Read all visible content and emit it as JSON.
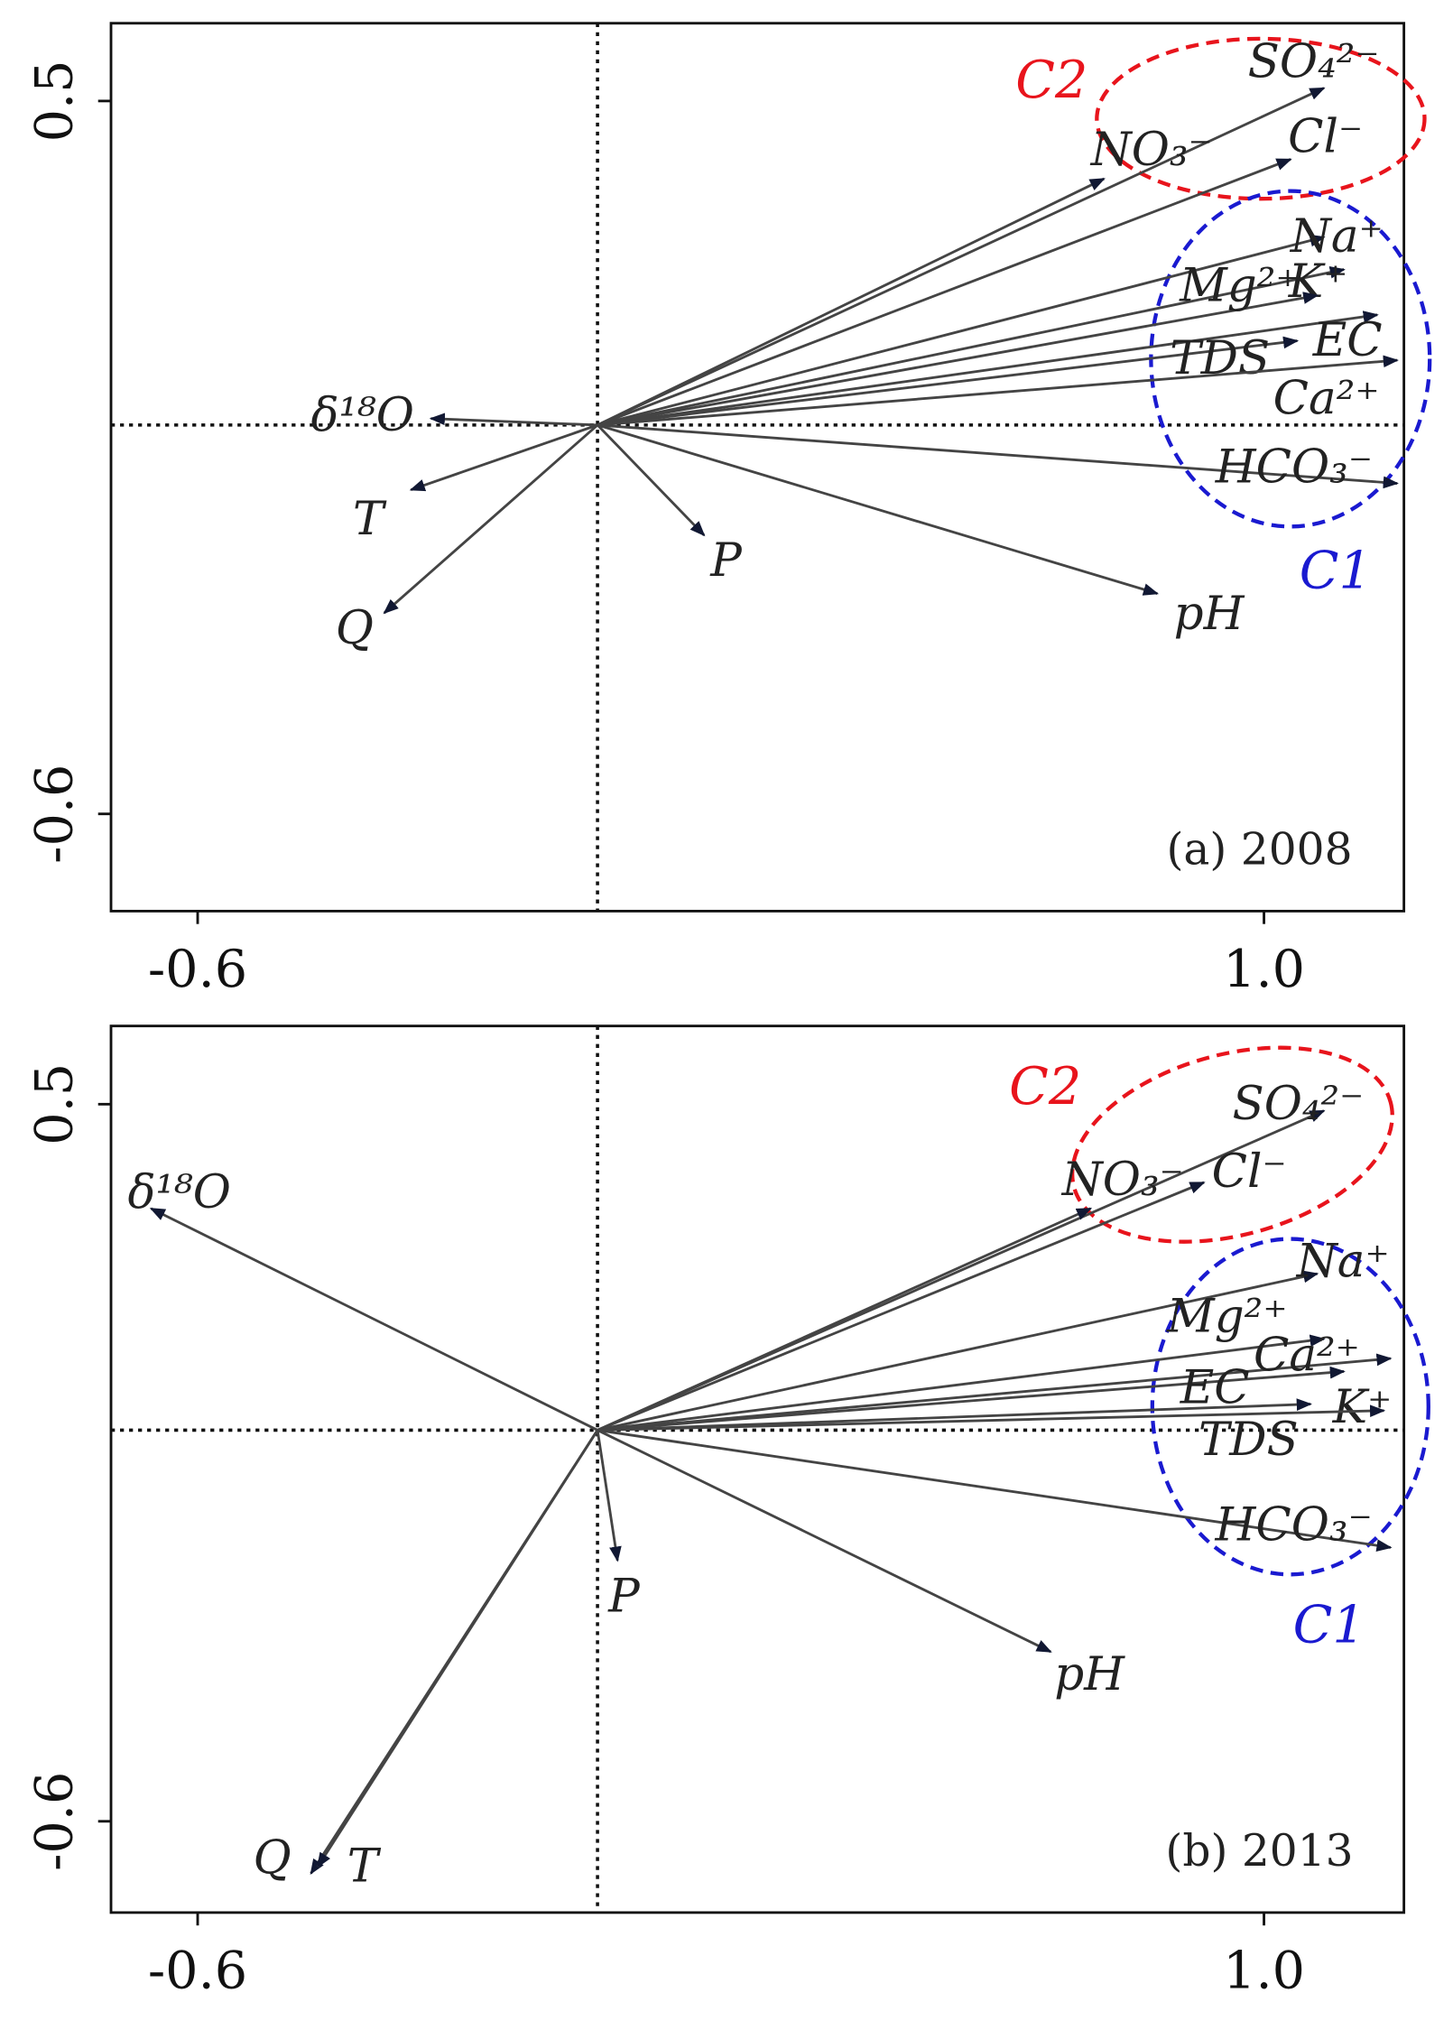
{
  "chart_data": [
    {
      "type": "biplot",
      "title": "(a) 2008",
      "xlim": [
        -0.73,
        1.21
      ],
      "ylim": [
        -0.75,
        0.62
      ],
      "xticks": [
        -0.6,
        {
          "value": 1.0,
          "label": "1.0"
        }
      ],
      "yticks": [
        0.5,
        -0.6
      ],
      "vectors": [
        {
          "name": "SO₄²⁻",
          "x": 1.09,
          "y": 0.52
        },
        {
          "name": "NO₃⁻",
          "x": 0.76,
          "y": 0.38
        },
        {
          "name": "Cl⁻",
          "x": 1.04,
          "y": 0.41
        },
        {
          "name": "Na⁺",
          "x": 1.09,
          "y": 0.29
        },
        {
          "name": "K⁺",
          "x": 1.12,
          "y": 0.24
        },
        {
          "name": "Mg²⁺",
          "x": 1.08,
          "y": 0.2
        },
        {
          "name": "EC",
          "x": 1.17,
          "y": 0.17
        },
        {
          "name": "TDS",
          "x": 1.05,
          "y": 0.13
        },
        {
          "name": "Ca²⁺",
          "x": 1.2,
          "y": 0.1
        },
        {
          "name": "HCO₃⁻",
          "x": 1.2,
          "y": -0.09
        },
        {
          "name": "pH",
          "x": 0.84,
          "y": -0.26
        },
        {
          "name": "P",
          "x": 0.16,
          "y": -0.17
        },
        {
          "name": "δ¹⁸O",
          "x": -0.25,
          "y": 0.01
        },
        {
          "name": "T",
          "x": -0.28,
          "y": -0.1
        },
        {
          "name": "Q",
          "x": -0.32,
          "y": -0.29
        }
      ],
      "groups": [
        {
          "name": "C2",
          "color": "#e8141c"
        },
        {
          "name": "C1",
          "color": "#1a1ad0"
        }
      ]
    },
    {
      "type": "biplot",
      "title": "(b) 2013",
      "xlim": [
        -0.73,
        1.21
      ],
      "ylim": [
        -0.74,
        0.62
      ],
      "xticks": [
        -0.6,
        {
          "value": 1.0,
          "label": "1.0"
        }
      ],
      "yticks": [
        0.5,
        -0.6
      ],
      "vectors": [
        {
          "name": "SO₄²⁻",
          "x": 1.09,
          "y": 0.49
        },
        {
          "name": "NO₃⁻",
          "x": 0.74,
          "y": 0.34
        },
        {
          "name": "Cl⁻",
          "x": 0.91,
          "y": 0.38
        },
        {
          "name": "Na⁺",
          "x": 1.08,
          "y": 0.24
        },
        {
          "name": "Mg²⁺",
          "x": 1.09,
          "y": 0.14
        },
        {
          "name": "Ca²⁺",
          "x": 1.19,
          "y": 0.11
        },
        {
          "name": "EC",
          "x": 1.12,
          "y": 0.09
        },
        {
          "name": "K⁺",
          "x": 1.07,
          "y": 0.04
        },
        {
          "name": "TDS",
          "x": 1.18,
          "y": 0.03
        },
        {
          "name": "HCO₃⁻",
          "x": 1.19,
          "y": -0.18
        },
        {
          "name": "pH",
          "x": 0.68,
          "y": -0.34
        },
        {
          "name": "P",
          "x": 0.03,
          "y": -0.2
        },
        {
          "name": "δ¹⁸O",
          "x": -0.67,
          "y": 0.34
        },
        {
          "name": "Q",
          "x": -0.43,
          "y": -0.68
        },
        {
          "name": "T",
          "x": -0.42,
          "y": -0.67
        }
      ],
      "groups": [
        {
          "name": "C2",
          "color": "#e8141c"
        },
        {
          "name": "C1",
          "color": "#1a1ad0"
        }
      ]
    }
  ]
}
